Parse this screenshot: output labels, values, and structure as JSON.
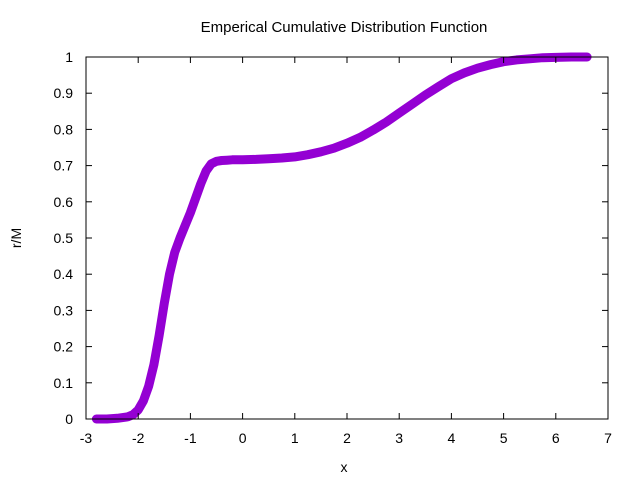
{
  "chart_data": {
    "type": "scatter",
    "title": "Emperical Cumulative Distribution Function",
    "xlabel": "x",
    "ylabel": "r/M",
    "xlim": [
      -3,
      7
    ],
    "ylim": [
      0,
      1
    ],
    "xticks": [
      -3,
      -2,
      -1,
      0,
      1,
      2,
      3,
      4,
      5,
      6,
      7
    ],
    "yticks": [
      0,
      0.1,
      0.2,
      0.3,
      0.4,
      0.5,
      0.6,
      0.7,
      0.8,
      0.9,
      1
    ],
    "grid": false,
    "legend": "none",
    "marker": "plus",
    "color": "#9400d3",
    "series": [
      {
        "x": [
          -2.8,
          -2.6,
          -2.4,
          -2.2,
          -2.1,
          -2.0,
          -1.9,
          -1.8,
          -1.7,
          -1.6,
          -1.5,
          -1.4,
          -1.3,
          -1.2,
          -1.1,
          -1.0,
          -0.9,
          -0.8,
          -0.7,
          -0.6,
          -0.5,
          -0.4,
          -0.3,
          -0.2,
          0.0,
          0.25,
          0.5,
          0.75,
          1.0,
          1.25,
          1.5,
          1.75,
          2.0,
          2.25,
          2.5,
          2.75,
          3.0,
          3.25,
          3.5,
          3.75,
          4.0,
          4.25,
          4.5,
          4.75,
          5.0,
          5.25,
          5.5,
          5.75,
          6.0,
          6.3,
          6.6
        ],
        "y": [
          0.0,
          0.0,
          0.002,
          0.006,
          0.012,
          0.025,
          0.05,
          0.09,
          0.15,
          0.23,
          0.32,
          0.4,
          0.46,
          0.5,
          0.535,
          0.57,
          0.61,
          0.65,
          0.685,
          0.705,
          0.712,
          0.714,
          0.715,
          0.716,
          0.716,
          0.717,
          0.719,
          0.721,
          0.724,
          0.73,
          0.738,
          0.748,
          0.762,
          0.778,
          0.798,
          0.82,
          0.845,
          0.87,
          0.895,
          0.918,
          0.94,
          0.956,
          0.969,
          0.979,
          0.987,
          0.992,
          0.995,
          0.998,
          0.999,
          1.0,
          1.0
        ]
      }
    ]
  }
}
